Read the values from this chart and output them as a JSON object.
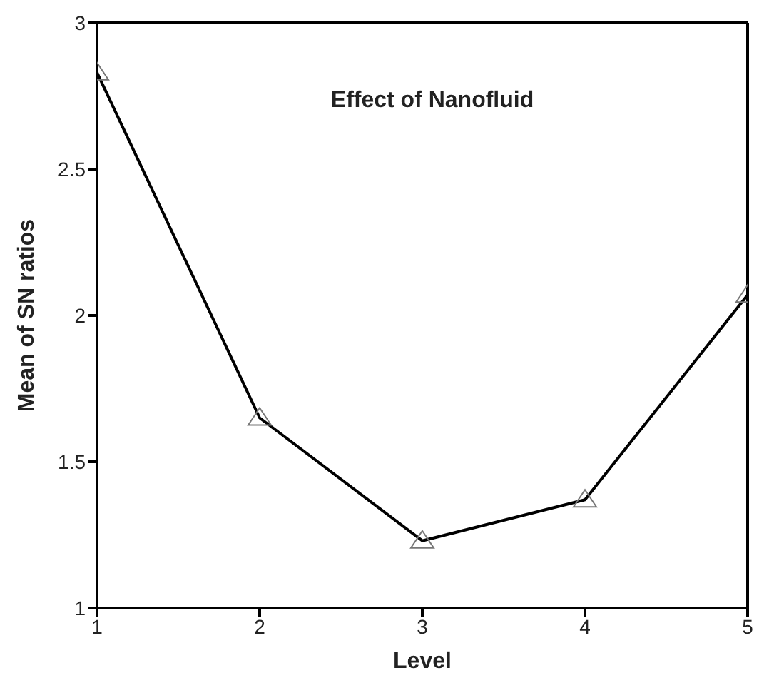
{
  "chart_data": {
    "type": "line",
    "title": "Effect of Nanofluid",
    "xlabel": "Level",
    "ylabel": "Mean of SN ratios",
    "x": [
      1,
      2,
      3,
      4,
      5
    ],
    "series": [
      {
        "color": "#000000",
        "values": [
          2.83,
          1.65,
          1.23,
          1.37,
          2.07
        ]
      }
    ],
    "xlim": [
      1,
      5
    ],
    "xticks": [
      1,
      2,
      3,
      4,
      5
    ],
    "ylim": [
      1,
      3
    ],
    "yticks": [
      1,
      1.5,
      2,
      2.5,
      3
    ],
    "grid": false,
    "legend": false,
    "marker": "triangle",
    "line_style": "solid"
  }
}
